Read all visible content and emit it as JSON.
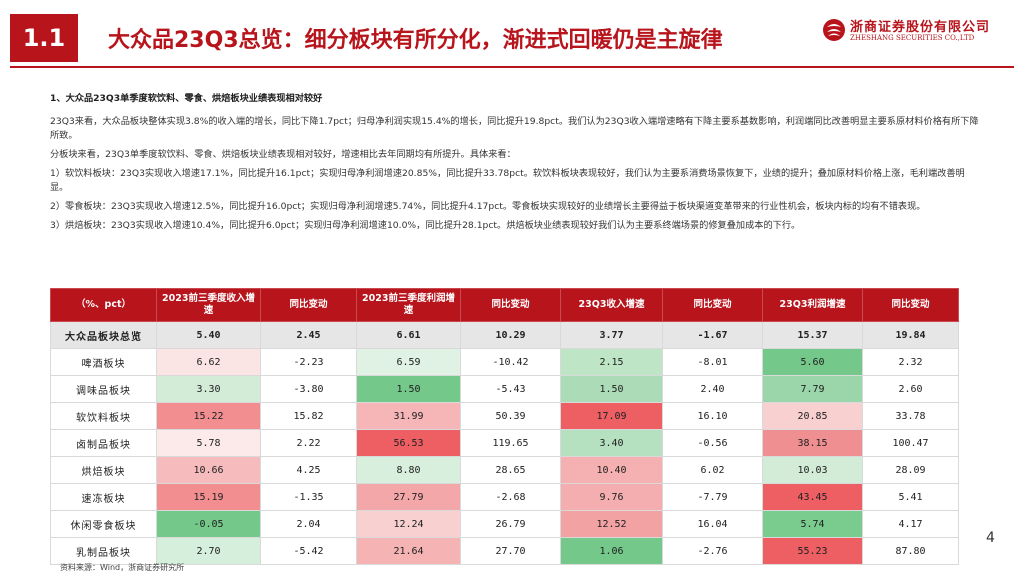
{
  "header": {
    "section_number": "1.1",
    "title": "大众品23Q3总览：细分板块有所分化，渐进式回暖仍是主旋律",
    "logo_cn": "浙商证券股份有限公司",
    "logo_en": "ZHESHANG SECURITIES CO.,LTD",
    "brand_color": "#b8141c"
  },
  "body": {
    "heading": "1、大众品23Q3单季度软饮料、零食、烘焙板块业绩表现相对较好",
    "paragraphs": [
      "23Q3来看，大众品板块整体实现3.8%的收入端的增长，同比下降1.7pct；归母净利润实现15.4%的增长，同比提升19.8pct。我们认为23Q3收入端增速略有下降主要系基数影响，利润端同比改善明显主要系原材料价格有所下降所致。",
      "分板块来看，23Q3单季度软饮料、零食、烘焙板块业绩表现相对较好，增速相比去年同期均有所提升。具体来看：",
      "1）软饮料板块：23Q3实现收入增速17.1%，同比提升16.1pct；实现归母净利润增速20.85%，同比提升33.78pct。软饮料板块表现较好，我们认为主要系消费场景恢复下，业绩的提升；叠加原材料价格上涨，毛利端改善明显。",
      "2）零食板块：23Q3实现收入增速12.5%，同比提升16.0pct；实现归母净利润增速5.74%，同比提升4.17pct。零食板块实现较好的业绩增长主要得益于板块渠道变革带来的行业性机会，板块内标的均有不错表现。",
      "3）烘焙板块：23Q3实现收入增速10.4%，同比提升6.0pct；实现归母净利润增速10.0%，同比提升28.1pct。烘焙板块业绩表现较好我们认为主要系终端场景的修复叠加成本的下行。"
    ]
  },
  "table": {
    "headers": [
      "（%、pct）",
      "2023前三季度收入增速",
      "同比变动",
      "2023前三季度利润增速",
      "同比变动",
      "23Q3收入增速",
      "同比变动",
      "23Q3利润增速",
      "同比变动"
    ],
    "rows": [
      {
        "label": "大众品板块总览",
        "values": [
          "5.40",
          "2.45",
          "6.61",
          "10.29",
          "3.77",
          "-1.67",
          "15.37",
          "19.84"
        ]
      },
      {
        "label": "啤酒板块",
        "values": [
          "6.62",
          "-2.23",
          "6.59",
          "-10.42",
          "2.15",
          "-8.01",
          "5.60",
          "2.32"
        ]
      },
      {
        "label": "调味品板块",
        "values": [
          "3.30",
          "-3.80",
          "1.50",
          "-5.43",
          "1.50",
          "2.40",
          "7.79",
          "2.60"
        ]
      },
      {
        "label": "软饮料板块",
        "values": [
          "15.22",
          "15.82",
          "31.99",
          "50.39",
          "17.09",
          "16.10",
          "20.85",
          "33.78"
        ]
      },
      {
        "label": "卤制品板块",
        "values": [
          "5.78",
          "2.22",
          "56.53",
          "119.65",
          "3.40",
          "-0.56",
          "38.15",
          "100.47"
        ]
      },
      {
        "label": "烘焙板块",
        "values": [
          "10.66",
          "4.25",
          "8.80",
          "28.65",
          "10.40",
          "6.02",
          "10.03",
          "28.09"
        ]
      },
      {
        "label": "速冻板块",
        "values": [
          "15.19",
          "-1.35",
          "27.79",
          "-2.68",
          "9.76",
          "-7.79",
          "43.45",
          "5.41"
        ]
      },
      {
        "label": "休闲零食板块",
        "values": [
          "-0.05",
          "2.04",
          "12.24",
          "26.79",
          "12.52",
          "16.04",
          "5.74",
          "4.17"
        ]
      },
      {
        "label": "乳制品板块",
        "values": [
          "2.70",
          "-5.42",
          "21.64",
          "27.70",
          "1.06",
          "-2.76",
          "55.23",
          "87.80"
        ]
      }
    ],
    "heat_colors": {
      "c1": [
        "#e6e6e6",
        "#fae4e4",
        "#d2ecd8",
        "#f28e90",
        "#fce9e9",
        "#f6bcbd",
        "#f28e90",
        "#74c98a",
        "#d6eedc"
      ],
      "c3": [
        "#e6e6e6",
        "#dff2e4",
        "#74c98a",
        "#f6b6b7",
        "#ed5f62",
        "#d8efdd",
        "#f3a7a8",
        "#f8d0d0",
        "#f5b3b4"
      ],
      "c5": [
        "#e6e6e6",
        "#bde5c6",
        "#abdcb7",
        "#ed5f62",
        "#b5e1c1",
        "#f5b0b1",
        "#f4aeaf",
        "#f3a2a3",
        "#74c98a"
      ],
      "c7": [
        "#e6e6e6",
        "#74c98a",
        "#9ad6a9",
        "#f8d0d0",
        "#f08f91",
        "#d2ecd8",
        "#ed5f62",
        "#79cb8e",
        "#ed5f62"
      ]
    }
  },
  "footer": {
    "source": "资料来源：Wind，浙商证券研究所",
    "page_number": "4"
  }
}
